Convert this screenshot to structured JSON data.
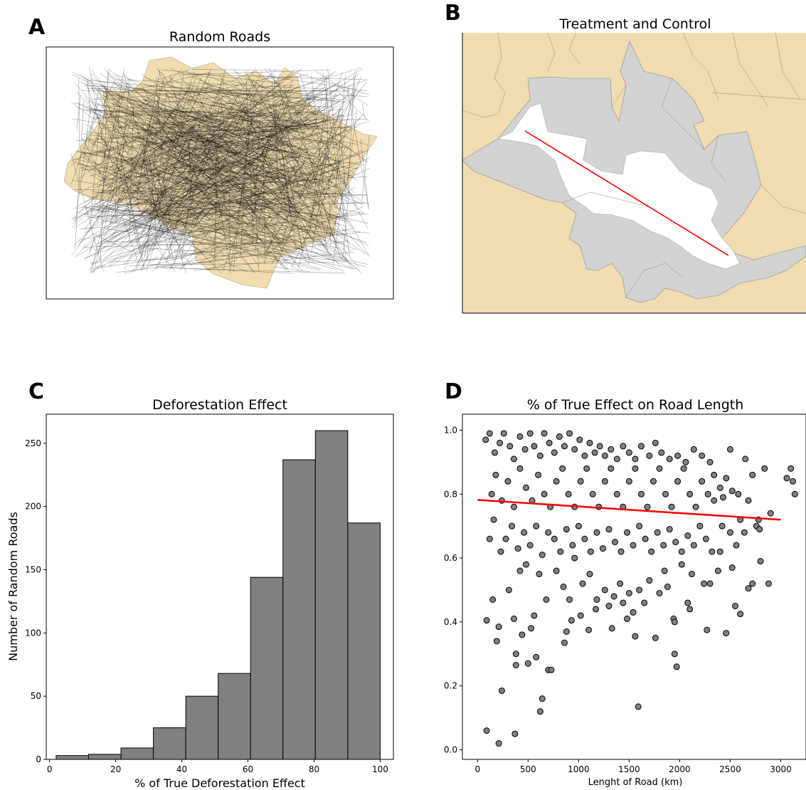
{
  "panels": {
    "a": {
      "label": "A",
      "title": "Random Roads"
    },
    "b": {
      "label": "B",
      "title": "Treatment and Control"
    },
    "c": {
      "label": "C",
      "title": "Deforestation Effect",
      "xlabel": "% of True Deforestation Effect",
      "ylabel": "Number of Random Roads"
    },
    "d": {
      "label": "D",
      "title": "% of True Effect on Road Length",
      "xlabel": "Lenght of Road (km)"
    }
  },
  "colors": {
    "land": "#f0dcb1",
    "control": "#d3d3d3",
    "treatment": "#ffffff",
    "bar": "#808080",
    "point": "#808080",
    "trend": "#ff0000",
    "road": "#000000"
  },
  "chart_data": [
    {
      "type": "bar",
      "title": "Deforestation Effect",
      "xlabel": "% of True Deforestation Effect",
      "ylabel": "Number of Random Roads",
      "bin_edges": [
        2,
        11.8,
        21.6,
        31.4,
        41.2,
        51,
        60.8,
        70.6,
        80.4,
        90.2,
        100
      ],
      "values": [
        3,
        4,
        9,
        25,
        50,
        68,
        144,
        237,
        260,
        187
      ],
      "xlim": [
        -1,
        104
      ],
      "ylim": [
        0,
        273
      ],
      "xticks": [
        "0",
        "20",
        "40",
        "60",
        "80",
        "100"
      ],
      "yticks": [
        "0",
        "50",
        "100",
        "150",
        "200",
        "250"
      ]
    },
    {
      "type": "scatter",
      "title": "% of True Effect on Road Length",
      "xlabel": "Lenght of Road (km)",
      "ylabel": "",
      "xlim": [
        -150,
        3250
      ],
      "ylim": [
        -0.03,
        1.05
      ],
      "xticks": [
        "0",
        "500",
        "1000",
        "1500",
        "2000",
        "2500",
        "3000"
      ],
      "yticks": [
        "0.0",
        "0.2",
        "0.4",
        "0.6",
        "0.8",
        "1.0"
      ],
      "trend": {
        "x": [
          0,
          3000
        ],
        "y": [
          0.782,
          0.72
        ]
      },
      "points": [
        [
          90,
          0.06
        ],
        [
          210,
          0.02
        ],
        [
          370,
          0.05
        ],
        [
          240,
          0.185
        ],
        [
          640,
          0.16
        ],
        [
          620,
          0.12
        ],
        [
          1590,
          0.135
        ],
        [
          380,
          0.265
        ],
        [
          700,
          0.25
        ],
        [
          730,
          0.25
        ],
        [
          380,
          0.3
        ],
        [
          580,
          0.29
        ],
        [
          1970,
          0.26
        ],
        [
          1950,
          0.3
        ],
        [
          150,
          0.47
        ],
        [
          90,
          0.405
        ],
        [
          190,
          0.34
        ],
        [
          210,
          0.385
        ],
        [
          360,
          0.41
        ],
        [
          440,
          0.36
        ],
        [
          500,
          0.27
        ],
        [
          530,
          0.38
        ],
        [
          860,
          0.335
        ],
        [
          880,
          0.37
        ],
        [
          930,
          0.405
        ],
        [
          1020,
          0.42
        ],
        [
          1100,
          0.375
        ],
        [
          1170,
          0.44
        ],
        [
          1330,
          0.38
        ],
        [
          1480,
          0.41
        ],
        [
          1560,
          0.355
        ],
        [
          1760,
          0.35
        ],
        [
          1940,
          0.41
        ],
        [
          1950,
          0.4
        ],
        [
          2080,
          0.46
        ],
        [
          2100,
          0.44
        ],
        [
          2270,
          0.375
        ],
        [
          2460,
          0.365
        ],
        [
          2550,
          0.45
        ],
        [
          2600,
          0.425
        ],
        [
          2680,
          0.505
        ],
        [
          2880,
          0.52
        ],
        [
          310,
          0.5
        ],
        [
          420,
          0.56
        ],
        [
          480,
          0.58
        ],
        [
          560,
          0.42
        ],
        [
          610,
          0.55
        ],
        [
          680,
          0.47
        ],
        [
          780,
          0.56
        ],
        [
          850,
          0.51
        ],
        [
          910,
          0.47
        ],
        [
          960,
          0.6
        ],
        [
          1040,
          0.52
        ],
        [
          1110,
          0.55
        ],
        [
          1180,
          0.47
        ],
        [
          1260,
          0.5
        ],
        [
          1300,
          0.45
        ],
        [
          1350,
          0.48
        ],
        [
          1410,
          0.52
        ],
        [
          1440,
          0.46
        ],
        [
          1500,
          0.49
        ],
        [
          1540,
          0.43
        ],
        [
          1600,
          0.5
        ],
        [
          1650,
          0.46
        ],
        [
          1700,
          0.53
        ],
        [
          1800,
          0.49
        ],
        [
          1850,
          0.56
        ],
        [
          1880,
          0.51
        ],
        [
          2020,
          0.58
        ],
        [
          2120,
          0.55
        ],
        [
          2240,
          0.52
        ],
        [
          2300,
          0.52
        ],
        [
          2380,
          0.56
        ],
        [
          2400,
          0.62
        ],
        [
          2520,
          0.57
        ],
        [
          2720,
          0.52
        ],
        [
          2800,
          0.59
        ],
        [
          120,
          0.66
        ],
        [
          160,
          0.72
        ],
        [
          230,
          0.62
        ],
        [
          280,
          0.66
        ],
        [
          340,
          0.7
        ],
        [
          400,
          0.63
        ],
        [
          460,
          0.68
        ],
        [
          520,
          0.64
        ],
        [
          580,
          0.7
        ],
        [
          640,
          0.61
        ],
        [
          700,
          0.68
        ],
        [
          760,
          0.66
        ],
        [
          820,
          0.62
        ],
        [
          880,
          0.69
        ],
        [
          940,
          0.64
        ],
        [
          1000,
          0.7
        ],
        [
          1060,
          0.66
        ],
        [
          1120,
          0.62
        ],
        [
          1180,
          0.68
        ],
        [
          1240,
          0.63
        ],
        [
          1300,
          0.69
        ],
        [
          1360,
          0.65
        ],
        [
          1420,
          0.62
        ],
        [
          1480,
          0.68
        ],
        [
          1540,
          0.64
        ],
        [
          1600,
          0.7
        ],
        [
          1660,
          0.66
        ],
        [
          1720,
          0.62
        ],
        [
          1780,
          0.68
        ],
        [
          1840,
          0.64
        ],
        [
          1900,
          0.69
        ],
        [
          1960,
          0.65
        ],
        [
          2020,
          0.62
        ],
        [
          2080,
          0.67
        ],
        [
          2140,
          0.64
        ],
        [
          2200,
          0.7
        ],
        [
          2260,
          0.66
        ],
        [
          2320,
          0.62
        ],
        [
          2500,
          0.68
        ],
        [
          2560,
          0.64
        ],
        [
          2640,
          0.68
        ],
        [
          2760,
          0.7
        ],
        [
          80,
          0.97
        ],
        [
          120,
          0.99
        ],
        [
          170,
          0.93
        ],
        [
          220,
          0.96
        ],
        [
          260,
          0.99
        ],
        [
          320,
          0.95
        ],
        [
          360,
          0.91
        ],
        [
          420,
          0.98
        ],
        [
          470,
          0.94
        ],
        [
          520,
          0.99
        ],
        [
          560,
          0.95
        ],
        [
          620,
          0.92
        ],
        [
          660,
          0.99
        ],
        [
          710,
          0.96
        ],
        [
          760,
          0.93
        ],
        [
          810,
          0.98
        ],
        [
          860,
          0.95
        ],
        [
          910,
          0.99
        ],
        [
          960,
          0.94
        ],
        [
          1010,
          0.97
        ],
        [
          1060,
          0.92
        ],
        [
          1110,
          0.96
        ],
        [
          1160,
          0.93
        ],
        [
          1210,
          0.95
        ],
        [
          1260,
          0.92
        ],
        [
          1320,
          0.94
        ],
        [
          1380,
          0.91
        ],
        [
          1440,
          0.95
        ],
        [
          1500,
          0.93
        ],
        [
          1560,
          0.91
        ],
        [
          1620,
          0.95
        ],
        [
          1700,
          0.92
        ],
        [
          1760,
          0.96
        ],
        [
          1820,
          0.93
        ],
        [
          1900,
          0.91
        ],
        [
          1980,
          0.92
        ],
        [
          2060,
          0.9
        ],
        [
          2140,
          0.94
        ],
        [
          2220,
          0.92
        ],
        [
          2300,
          0.9
        ],
        [
          2500,
          0.94
        ],
        [
          2650,
          0.91
        ],
        [
          2720,
          0.86
        ],
        [
          2840,
          0.88
        ],
        [
          3060,
          0.85
        ],
        [
          3120,
          0.84
        ],
        [
          3140,
          0.8
        ],
        [
          3100,
          0.88
        ],
        [
          2900,
          0.74
        ],
        [
          2790,
          0.69
        ],
        [
          2780,
          0.72
        ],
        [
          2600,
          0.72
        ],
        [
          2420,
          0.7
        ],
        [
          2520,
          0.81
        ],
        [
          2430,
          0.79
        ],
        [
          2340,
          0.86
        ],
        [
          140,
          0.8
        ],
        [
          180,
          0.86
        ],
        [
          240,
          0.78
        ],
        [
          300,
          0.84
        ],
        [
          360,
          0.76
        ],
        [
          420,
          0.88
        ],
        [
          480,
          0.82
        ],
        [
          540,
          0.78
        ],
        [
          600,
          0.86
        ],
        [
          660,
          0.8
        ],
        [
          720,
          0.76
        ],
        [
          780,
          0.84
        ],
        [
          840,
          0.88
        ],
        [
          900,
          0.8
        ],
        [
          960,
          0.76
        ],
        [
          1020,
          0.84
        ],
        [
          1080,
          0.88
        ],
        [
          1140,
          0.8
        ],
        [
          1200,
          0.76
        ],
        [
          1260,
          0.84
        ],
        [
          1320,
          0.88
        ],
        [
          1380,
          0.8
        ],
        [
          1440,
          0.76
        ],
        [
          1500,
          0.84
        ],
        [
          1560,
          0.88
        ],
        [
          1620,
          0.8
        ],
        [
          1680,
          0.76
        ],
        [
          1740,
          0.84
        ],
        [
          1800,
          0.88
        ],
        [
          1860,
          0.8
        ],
        [
          1920,
          0.76
        ],
        [
          1980,
          0.84
        ],
        [
          2040,
          0.88
        ],
        [
          2100,
          0.8
        ],
        [
          2160,
          0.76
        ],
        [
          2220,
          0.84
        ],
        [
          2280,
          0.8
        ],
        [
          2340,
          0.78
        ],
        [
          2400,
          0.82
        ],
        [
          2460,
          0.85
        ],
        [
          2580,
          0.8
        ],
        [
          2680,
          0.78
        ]
      ]
    }
  ]
}
